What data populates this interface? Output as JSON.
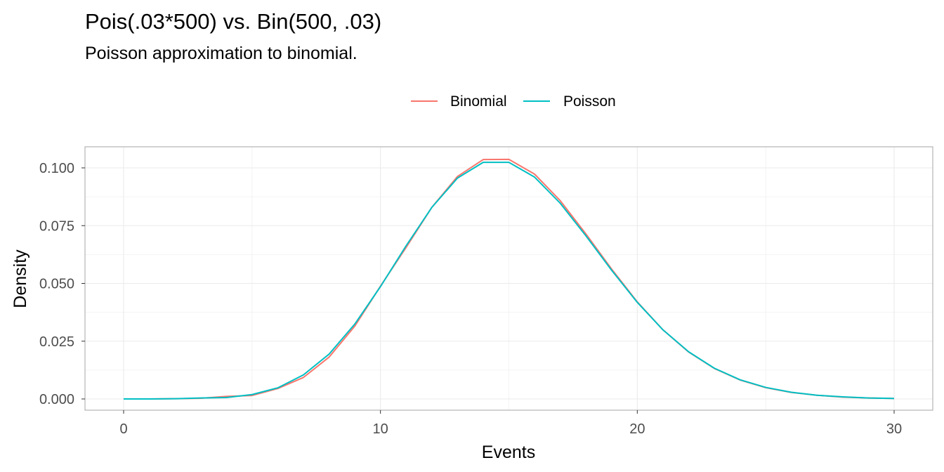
{
  "chart_data": {
    "type": "line",
    "title": "Pois(.03*500) vs. Bin(500, .03)",
    "subtitle": "Poisson approximation to binomial.",
    "xlabel": "Events",
    "ylabel": "Density",
    "xlim": [
      0,
      30
    ],
    "ylim": [
      0,
      0.1
    ],
    "xticks": [
      "0",
      "10",
      "20",
      "30"
    ],
    "yticks": [
      "0.000",
      "0.025",
      "0.050",
      "0.075",
      "0.100"
    ],
    "grid": true,
    "legend_position": "top",
    "x": [
      0,
      1,
      2,
      3,
      4,
      5,
      6,
      7,
      8,
      9,
      10,
      11,
      12,
      13,
      14,
      15,
      16,
      17,
      18,
      19,
      20,
      21,
      22,
      23,
      24,
      25,
      26,
      27,
      28,
      29,
      30
    ],
    "series": [
      {
        "name": "Binomial",
        "color": "#F8766D",
        "values": [
          0.0,
          0.0,
          0.0001,
          0.0003,
          0.0011,
          0.0015,
          0.0045,
          0.0093,
          0.0181,
          0.0315,
          0.0488,
          0.0656,
          0.0829,
          0.0963,
          0.1036,
          0.1037,
          0.0973,
          0.0858,
          0.0714,
          0.0562,
          0.042,
          0.0299,
          0.0203,
          0.0132,
          0.0082,
          0.0049,
          0.0028,
          0.0016,
          0.0008,
          0.0004,
          0.0002
        ]
      },
      {
        "name": "Poisson",
        "color": "#00BFC4",
        "values": [
          0.0,
          0.0,
          0.0001,
          0.0004,
          0.0006,
          0.0019,
          0.0048,
          0.0104,
          0.0194,
          0.0324,
          0.0486,
          0.0663,
          0.0829,
          0.0956,
          0.1024,
          0.1024,
          0.096,
          0.0847,
          0.0706,
          0.0557,
          0.0418,
          0.0299,
          0.0204,
          0.0133,
          0.0083,
          0.005,
          0.0029,
          0.0016,
          0.0009,
          0.0004,
          0.0002
        ]
      }
    ]
  },
  "colors": {
    "grid": "#ebebeb",
    "panel_border": "#b3b3b3",
    "tick_text": "#4d4d4d"
  }
}
